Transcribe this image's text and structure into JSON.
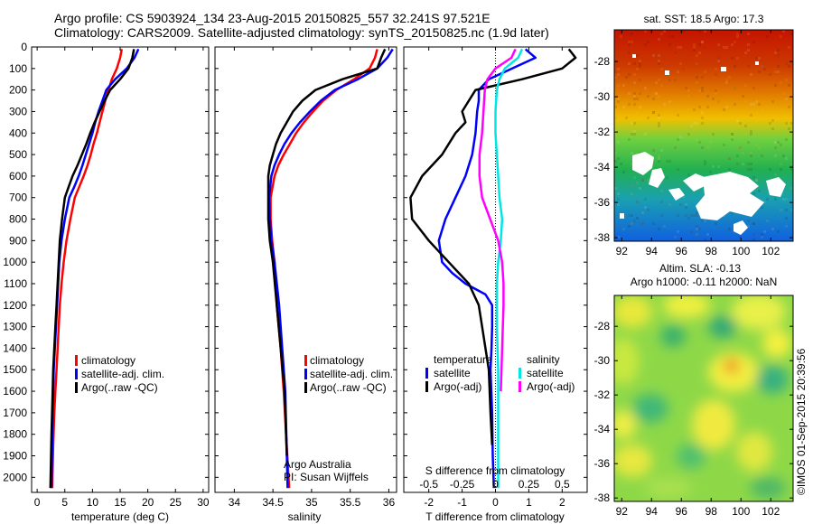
{
  "header": {
    "line1": "Argo profile: CS 5903924_134 23-Aug-2015 20150825_557 32.241S 97.521E",
    "line2": "Climatology: CARS2009. Satellite-adjusted climatology: synTS_20150825.nc (1.9d later)"
  },
  "colors": {
    "climatology": "#ff0000",
    "satellite": "#0000ff",
    "argo": "#000000",
    "satellite_salinity": "#00e5e5",
    "argo_salinity": "#ff00ff"
  },
  "credit": "©IMOS 01-Sep-2015 20:39:56",
  "chart_data": [
    {
      "type": "line",
      "xlabel": "temperature (deg C)",
      "xlim": [
        -1,
        31
      ],
      "xticks": [
        "0",
        "5",
        "10",
        "15",
        "20",
        "25",
        "30"
      ],
      "ylim": [
        2070,
        0
      ],
      "yticks": [
        "0",
        "100",
        "200",
        "300",
        "400",
        "500",
        "600",
        "700",
        "800",
        "900",
        "1000",
        "1100",
        "1200",
        "1300",
        "1400",
        "1500",
        "1600",
        "1700",
        "1800",
        "1900",
        "2000"
      ],
      "legend": [
        "climatology",
        "satellite-adj. clim.",
        "Argo(..raw -QC)"
      ],
      "series": [
        {
          "name": "climatology",
          "color": "#ff0000",
          "x": [
            15.3,
            15.0,
            14.4,
            13.5,
            12.9,
            12.3,
            11.8,
            11.3,
            10.8,
            10.2,
            9.7,
            9.1,
            8.4,
            7.6,
            6.8,
            6.0,
            5.3,
            4.8,
            4.4,
            4.1,
            3.9,
            3.7,
            3.5,
            3.3,
            3.1,
            2.9,
            2.7
          ],
          "y": [
            10,
            50,
            100,
            150,
            200,
            250,
            300,
            350,
            400,
            450,
            500,
            550,
            600,
            650,
            700,
            800,
            900,
            1000,
            1100,
            1200,
            1300,
            1400,
            1500,
            1600,
            1700,
            1850,
            2050
          ]
        },
        {
          "name": "satellite-adj. clim.",
          "color": "#0000ff",
          "x": [
            18.3,
            17.6,
            16.2,
            14.1,
            12.5,
            11.8,
            11.1,
            10.5,
            10.0,
            9.4,
            8.8,
            8.2,
            7.5,
            6.7,
            5.8,
            5.0,
            4.4,
            4.0,
            3.8,
            3.6,
            3.4,
            3.2,
            3.0,
            2.8,
            2.6
          ],
          "y": [
            10,
            50,
            100,
            150,
            200,
            250,
            300,
            350,
            400,
            450,
            500,
            550,
            600,
            650,
            700,
            800,
            900,
            1000,
            1100,
            1200,
            1300,
            1400,
            1500,
            1700,
            2050
          ]
        },
        {
          "name": "Argo(..raw -QC)",
          "color": "#000000",
          "x": [
            17.5,
            17.2,
            16.5,
            15.0,
            13.2,
            12.2,
            11.3,
            10.4,
            9.6,
            8.9,
            8.1,
            7.3,
            6.4,
            5.7,
            5.0,
            4.5,
            4.1,
            3.9,
            3.7,
            3.5,
            3.3,
            3.1,
            2.9,
            2.8,
            2.6,
            2.4
          ],
          "y": [
            10,
            50,
            100,
            150,
            200,
            250,
            300,
            350,
            400,
            450,
            500,
            550,
            600,
            650,
            700,
            800,
            900,
            1000,
            1100,
            1200,
            1300,
            1400,
            1500,
            1600,
            1800,
            2050
          ]
        }
      ]
    },
    {
      "type": "line",
      "xlabel": "salinity",
      "xlim": [
        33.75,
        36.1
      ],
      "xticks": [
        "34",
        "34.5",
        "35",
        "35.5",
        "36"
      ],
      "ylim": [
        2070,
        0
      ],
      "legend": [
        "climatology",
        "satellite-adj. clim.",
        "Argo(..raw -QC)"
      ],
      "annotation": [
        "Argo Australia",
        "PI: Susan Wijffels"
      ],
      "series": [
        {
          "name": "climatology",
          "color": "#ff0000",
          "x": [
            35.85,
            35.82,
            35.75,
            35.55,
            35.32,
            35.15,
            35.02,
            34.9,
            34.8,
            34.72,
            34.64,
            34.57,
            34.52,
            34.47,
            34.47,
            34.49,
            34.52,
            34.55,
            34.6,
            34.64,
            34.67,
            34.71
          ],
          "y": [
            10,
            50,
            100,
            150,
            200,
            250,
            300,
            350,
            400,
            450,
            500,
            550,
            600,
            700,
            800,
            900,
            1000,
            1200,
            1400,
            1600,
            1800,
            2050
          ]
        },
        {
          "name": "satellite-adj. clim.",
          "color": "#0000ff",
          "x": [
            36.05,
            35.98,
            35.85,
            35.6,
            35.3,
            35.12,
            34.98,
            34.85,
            34.74,
            34.65,
            34.58,
            34.52,
            34.48,
            34.45,
            34.46,
            34.48,
            34.52,
            34.58,
            34.62,
            34.66,
            34.69
          ],
          "y": [
            10,
            50,
            100,
            150,
            200,
            250,
            300,
            350,
            400,
            450,
            500,
            550,
            600,
            700,
            800,
            900,
            1000,
            1200,
            1400,
            1600,
            2050
          ]
        },
        {
          "name": "Argo(..raw -QC)",
          "color": "#000000",
          "x": [
            35.95,
            35.9,
            35.85,
            35.4,
            35.05,
            34.88,
            34.76,
            34.68,
            34.6,
            34.54,
            34.5,
            34.46,
            34.44,
            34.44,
            34.46,
            34.5,
            34.55,
            34.6,
            34.65,
            34.68
          ],
          "y": [
            10,
            50,
            100,
            150,
            200,
            250,
            300,
            350,
            400,
            450,
            500,
            550,
            600,
            800,
            900,
            1000,
            1200,
            1400,
            1600,
            1900
          ]
        }
      ]
    },
    {
      "type": "line",
      "xlabel": "T difference from climatology",
      "top_label": "S difference from climatology",
      "xlim": [
        -2.75,
        2.75
      ],
      "xticks": [
        "-2",
        "-1",
        "0",
        "1",
        "2"
      ],
      "xticks_top": [
        "-0.5",
        "-0.25",
        "0",
        "0.25",
        "0.5"
      ],
      "ylim": [
        2070,
        0
      ],
      "legend_headers": [
        "temperature",
        "salinity"
      ],
      "legend": [
        "satellite",
        "Argo(-adj)",
        "satellite",
        "Argo(-adj)"
      ],
      "series": [
        {
          "name": "satellite",
          "group": "temperature",
          "color": "#0000ff",
          "x": [
            0.9,
            1.2,
            0.5,
            -0.2,
            -0.5,
            -0.5,
            -0.55,
            -0.6,
            -0.7,
            -0.9,
            -1.2,
            -1.5,
            -1.7,
            -1.6,
            -1.3,
            -0.9,
            -0.3,
            -0.1,
            -0.1,
            -0.12,
            -0.15,
            -0.1,
            -0.08,
            -0.05
          ],
          "y": [
            10,
            50,
            100,
            150,
            200,
            250,
            300,
            400,
            500,
            600,
            700,
            800,
            900,
            1000,
            1050,
            1100,
            1150,
            1200,
            1300,
            1400,
            1500,
            1700,
            1900,
            2050
          ]
        },
        {
          "name": "Argo(-adj)",
          "group": "temperature",
          "color": "#000000",
          "x": [
            2.2,
            2.4,
            2.0,
            0.8,
            -0.6,
            -1.0,
            -0.9,
            -1.2,
            -1.6,
            -2.2,
            -2.55,
            -2.5,
            -2.0,
            -1.4,
            -0.8,
            -0.5,
            -0.4,
            -0.3,
            -0.2,
            -0.15,
            -0.1
          ],
          "y": [
            10,
            50,
            100,
            150,
            200,
            300,
            350,
            400,
            500,
            600,
            700,
            800,
            900,
            1000,
            1100,
            1200,
            1300,
            1400,
            1500,
            1700,
            1850
          ]
        },
        {
          "name": "satellite",
          "group": "salinity",
          "color": "#00e5e5",
          "x": [
            0.2,
            0.17,
            0.07,
            0.03,
            0.01,
            0.0,
            0.0,
            0.01,
            0.02,
            0.03,
            0.05,
            0.04,
            0.02,
            0.01,
            0.01,
            0.02,
            0.02,
            0.02
          ],
          "y": [
            10,
            50,
            100,
            150,
            200,
            300,
            400,
            500,
            600,
            700,
            800,
            900,
            1000,
            1100,
            1300,
            1500,
            1800,
            2050
          ]
        },
        {
          "name": "Argo(-adj)",
          "group": "salinity",
          "color": "#ff00ff",
          "x": [
            0.15,
            0.12,
            0.0,
            -0.06,
            -0.08,
            -0.09,
            -0.1,
            -0.12,
            -0.12,
            -0.1,
            -0.04,
            0.02,
            0.05,
            0.06,
            0.06,
            0.05,
            0.04
          ],
          "y": [
            10,
            50,
            100,
            150,
            200,
            300,
            400,
            500,
            600,
            700,
            800,
            900,
            1000,
            1100,
            1200,
            1400,
            1600
          ]
        }
      ]
    },
    {
      "type": "heatmap",
      "title": "sat. SST: 18.5 Argo: 17.3",
      "xticks": [
        "92",
        "94",
        "96",
        "98",
        "100",
        "102"
      ],
      "yticks": [
        "-28",
        "-30",
        "-32",
        "-34",
        "-36",
        "-38"
      ],
      "xlim": [
        91.5,
        103.5
      ],
      "ylim": [
        -38.2,
        -26.2
      ]
    },
    {
      "type": "heatmap",
      "title": "Altim. SLA: -0.13",
      "subtitle": "Argo h1000: -0.11 h2000: NaN",
      "xticks": [
        "92",
        "94",
        "96",
        "98",
        "100",
        "102"
      ],
      "yticks": [
        "-28",
        "-30",
        "-32",
        "-34",
        "-36",
        "-38"
      ],
      "xlim": [
        91.5,
        103.5
      ],
      "ylim": [
        -38.2,
        -26.2
      ]
    }
  ]
}
